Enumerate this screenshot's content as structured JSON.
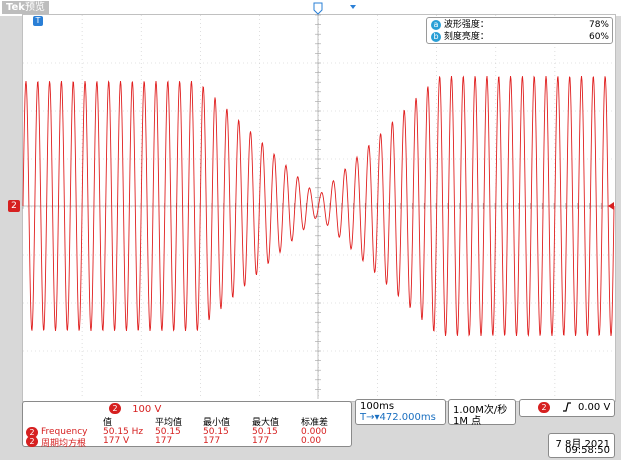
{
  "top_bar": {
    "brand": "Tek",
    "mode": "预览"
  },
  "trigger_marker": "T",
  "channel_marker": "2",
  "info_box": {
    "rows": [
      {
        "badge": "a",
        "label": "波形强度：",
        "value": "78%"
      },
      {
        "badge": "b",
        "label": "刻度亮度：",
        "value": "60%"
      }
    ]
  },
  "measurements": {
    "channel": "2",
    "scale": "100 V",
    "headers": [
      "值",
      "平均值",
      "最小值",
      "最大值",
      "标准差"
    ],
    "rows": [
      {
        "channel": "2",
        "label": "Frequency",
        "value": "50.15 Hz",
        "mean": "50.15",
        "min": "50.15",
        "max": "50.15",
        "std": "0.000"
      },
      {
        "channel": "2",
        "label": "周期均方根",
        "value": "177 V",
        "mean": "177",
        "min": "177",
        "max": "177",
        "std": "0.00"
      }
    ]
  },
  "horizontal": {
    "timebase": "100ms",
    "position_prefix": "T→▾",
    "position": "472.000ms"
  },
  "acquisition": {
    "rate": "1.00M次/秒",
    "points": "1M 点"
  },
  "trigger": {
    "channel": "2",
    "slope_icon": "rising-edge-icon",
    "level": "0.00 V"
  },
  "datetime": {
    "date": "7 8月  2021",
    "time": "09:58:50"
  },
  "colors": {
    "waveform": "#e02020",
    "ch2": "#d62020",
    "accent": "#2a9fd6"
  }
}
